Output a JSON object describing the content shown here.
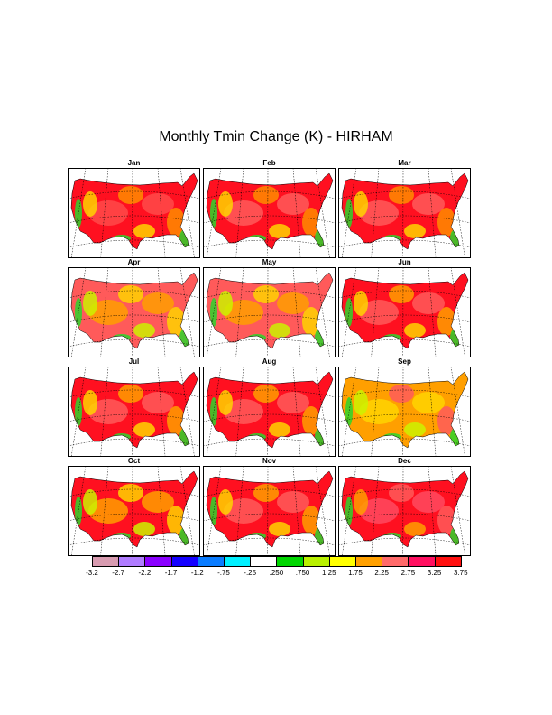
{
  "title": "Monthly Tmin Change (K) - HIRHAM",
  "months": [
    {
      "name": "Jan",
      "base": "#ff1020",
      "ramp": [
        "#ff4a4a",
        "#ff8c00",
        "#ffd400",
        "#2bd62b"
      ]
    },
    {
      "name": "Feb",
      "base": "#ff1020",
      "ramp": [
        "#ff5a5a",
        "#ff8c00",
        "#ffd400",
        "#2bd62b"
      ]
    },
    {
      "name": "Mar",
      "base": "#ff1020",
      "ramp": [
        "#ff5a5a",
        "#ff8c00",
        "#ffd400",
        "#2bd62b"
      ]
    },
    {
      "name": "Apr",
      "base": "#ff5a5a",
      "ramp": [
        "#ff9f00",
        "#ffd400",
        "#ccf200",
        "#2bd62b"
      ]
    },
    {
      "name": "May",
      "base": "#ff5a5a",
      "ramp": [
        "#ff9f00",
        "#ffd400",
        "#ccf200",
        "#2bd62b"
      ]
    },
    {
      "name": "Jun",
      "base": "#ff1020",
      "ramp": [
        "#ff5a5a",
        "#ff9f00",
        "#ffd400",
        "#2bd62b"
      ]
    },
    {
      "name": "Jul",
      "base": "#ff1020",
      "ramp": [
        "#ff5a5a",
        "#ff9f00",
        "#ffd400",
        "#2bd62b"
      ]
    },
    {
      "name": "Aug",
      "base": "#ff1020",
      "ramp": [
        "#ff5a5a",
        "#ff9f00",
        "#ffd400",
        "#2bd62b"
      ]
    },
    {
      "name": "Sep",
      "base": "#ff9f00",
      "ramp": [
        "#ffd400",
        "#ff5a5a",
        "#ccf200",
        "#2bd62b"
      ]
    },
    {
      "name": "Oct",
      "base": "#ff1020",
      "ramp": [
        "#ff9f00",
        "#ffd400",
        "#ccf200",
        "#2bd62b"
      ]
    },
    {
      "name": "Nov",
      "base": "#ff1020",
      "ramp": [
        "#ff5a5a",
        "#ff9f00",
        "#ffd400",
        "#2bd62b"
      ]
    },
    {
      "name": "Dec",
      "base": "#ff1020",
      "ramp": [
        "#ff4a60",
        "#ff5a5a",
        "#ff9f00",
        "#2bd62b"
      ]
    }
  ],
  "colorbar": {
    "colors": [
      "#d89bb0",
      "#b07cff",
      "#8a00ff",
      "#1400ff",
      "#0a7cff",
      "#00f0ff",
      "#ffffff",
      "#00d600",
      "#b8f000",
      "#ffff00",
      "#ffa000",
      "#ff6a6a",
      "#ff1060",
      "#ff1010"
    ],
    "labels": [
      "-3.2",
      "-2.7",
      "-2.2",
      "-1.7",
      "-1.2",
      "-.75",
      "-.25",
      ".250",
      ".750",
      "1.25",
      "1.75",
      "2.25",
      "2.75",
      "3.25",
      "3.75"
    ]
  }
}
